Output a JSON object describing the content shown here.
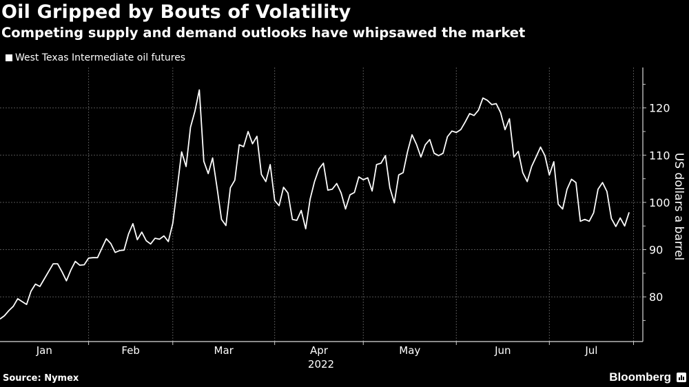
{
  "header": {
    "title": "Oil Gripped by Bouts of Volatility",
    "subtitle": "Competing supply and demand outlooks have whipsawed the market"
  },
  "footer": {
    "source": "Source: Nymex",
    "brand": "Bloomberg"
  },
  "colors": {
    "background": "#000000",
    "line": "#ffffff",
    "grid": "#555555"
  },
  "chart_data": {
    "type": "line",
    "title": "Oil Gripped by Bouts of Volatility",
    "subtitle": "Competing supply and demand outlooks have whipsawed the market",
    "xlabel": "2022",
    "ylabel": "US dollars a barrel",
    "ylim": [
      72,
      128
    ],
    "y_ticks": [
      80,
      90,
      100,
      110,
      120
    ],
    "x_tick_labels": [
      "Jan",
      "Feb",
      "Mar",
      "Apr",
      "May",
      "Jun",
      "Jul"
    ],
    "grid": true,
    "legend_position": "top-left",
    "y_axis_side": "right",
    "series": [
      {
        "name": "West Texas Intermediate oil futures",
        "color": "#ffffff",
        "x": [
          "2022-01-03",
          "2022-01-04",
          "2022-01-05",
          "2022-01-06",
          "2022-01-07",
          "2022-01-10",
          "2022-01-11",
          "2022-01-12",
          "2022-01-13",
          "2022-01-14",
          "2022-01-18",
          "2022-01-19",
          "2022-01-20",
          "2022-01-21",
          "2022-01-24",
          "2022-01-25",
          "2022-01-26",
          "2022-01-27",
          "2022-01-28",
          "2022-01-31",
          "2022-02-01",
          "2022-02-02",
          "2022-02-03",
          "2022-02-04",
          "2022-02-07",
          "2022-02-08",
          "2022-02-09",
          "2022-02-10",
          "2022-02-11",
          "2022-02-14",
          "2022-02-15",
          "2022-02-16",
          "2022-02-17",
          "2022-02-18",
          "2022-02-22",
          "2022-02-23",
          "2022-02-24",
          "2022-02-25",
          "2022-02-28",
          "2022-03-01",
          "2022-03-02",
          "2022-03-03",
          "2022-03-04",
          "2022-03-07",
          "2022-03-08",
          "2022-03-09",
          "2022-03-10",
          "2022-03-11",
          "2022-03-14",
          "2022-03-15",
          "2022-03-16",
          "2022-03-17",
          "2022-03-18",
          "2022-03-21",
          "2022-03-22",
          "2022-03-23",
          "2022-03-24",
          "2022-03-25",
          "2022-03-28",
          "2022-03-29",
          "2022-03-30",
          "2022-03-31",
          "2022-04-01",
          "2022-04-04",
          "2022-04-05",
          "2022-04-06",
          "2022-04-07",
          "2022-04-08",
          "2022-04-11",
          "2022-04-12",
          "2022-04-13",
          "2022-04-14",
          "2022-04-18",
          "2022-04-19",
          "2022-04-20",
          "2022-04-21",
          "2022-04-22",
          "2022-04-25",
          "2022-04-26",
          "2022-04-27",
          "2022-04-28",
          "2022-04-29",
          "2022-05-02",
          "2022-05-03",
          "2022-05-04",
          "2022-05-05",
          "2022-05-06",
          "2022-05-09",
          "2022-05-10",
          "2022-05-11",
          "2022-05-12",
          "2022-05-13",
          "2022-05-16",
          "2022-05-17",
          "2022-05-18",
          "2022-05-19",
          "2022-05-20",
          "2022-05-23",
          "2022-05-24",
          "2022-05-25",
          "2022-05-26",
          "2022-05-27",
          "2022-05-31",
          "2022-06-01",
          "2022-06-02",
          "2022-06-03",
          "2022-06-06",
          "2022-06-07",
          "2022-06-08",
          "2022-06-09",
          "2022-06-10",
          "2022-06-13",
          "2022-06-14",
          "2022-06-15",
          "2022-06-16",
          "2022-06-17",
          "2022-06-21",
          "2022-06-22",
          "2022-06-23",
          "2022-06-24",
          "2022-06-27",
          "2022-06-28",
          "2022-06-29",
          "2022-06-30",
          "2022-07-01",
          "2022-07-05",
          "2022-07-06",
          "2022-07-07",
          "2022-07-08",
          "2022-07-11",
          "2022-07-12",
          "2022-07-13",
          "2022-07-14",
          "2022-07-15",
          "2022-07-18",
          "2022-07-19",
          "2022-07-20",
          "2022-07-21",
          "2022-07-22",
          "2022-07-25",
          "2022-07-26",
          "2022-07-27",
          "2022-07-28"
        ],
        "values": [
          75.3,
          76.0,
          77.1,
          78.0,
          79.6,
          79.0,
          78.4,
          81.2,
          82.7,
          82.2,
          83.8,
          85.4,
          87.0,
          87.0,
          85.3,
          83.4,
          85.7,
          87.5,
          86.7,
          86.8,
          88.2,
          88.3,
          88.3,
          90.3,
          92.3,
          91.3,
          89.4,
          89.8,
          89.9,
          93.3,
          95.5,
          92.1,
          93.7,
          91.9,
          91.2,
          92.4,
          92.2,
          92.9,
          91.7,
          95.6,
          103.0,
          110.7,
          107.6,
          115.9,
          119.3,
          123.8,
          108.7,
          106.1,
          109.4,
          103.0,
          96.4,
          95.1,
          103.1,
          104.7,
          112.2,
          111.8,
          115.0,
          112.4,
          114.0,
          105.9,
          104.4,
          108.0,
          100.4,
          99.3,
          103.2,
          102.0,
          96.4,
          96.2,
          98.3,
          94.4,
          100.7,
          104.4,
          107.1,
          108.3,
          102.6,
          102.8,
          104.0,
          102.0,
          98.6,
          101.6,
          102.1,
          105.4,
          104.8,
          105.2,
          102.4,
          108.0,
          108.3,
          109.9,
          103.1,
          99.9,
          105.8,
          106.3,
          110.8,
          114.3,
          112.3,
          109.6,
          112.2,
          113.3,
          110.4,
          109.9,
          110.4,
          113.9,
          115.1,
          114.8,
          115.4,
          117.0,
          118.8,
          118.4,
          119.5,
          122.1,
          121.6,
          120.7,
          120.9,
          119.0,
          115.4,
          117.7,
          109.6,
          110.8,
          106.3,
          104.4,
          107.6,
          109.6,
          111.7,
          109.9,
          105.8,
          108.6,
          99.6,
          98.6,
          102.8,
          104.9,
          104.2,
          96.0,
          96.4,
          96.0,
          97.8,
          102.8,
          104.2,
          102.3,
          96.6,
          94.9,
          96.7,
          95.0,
          97.9
        ]
      }
    ]
  }
}
